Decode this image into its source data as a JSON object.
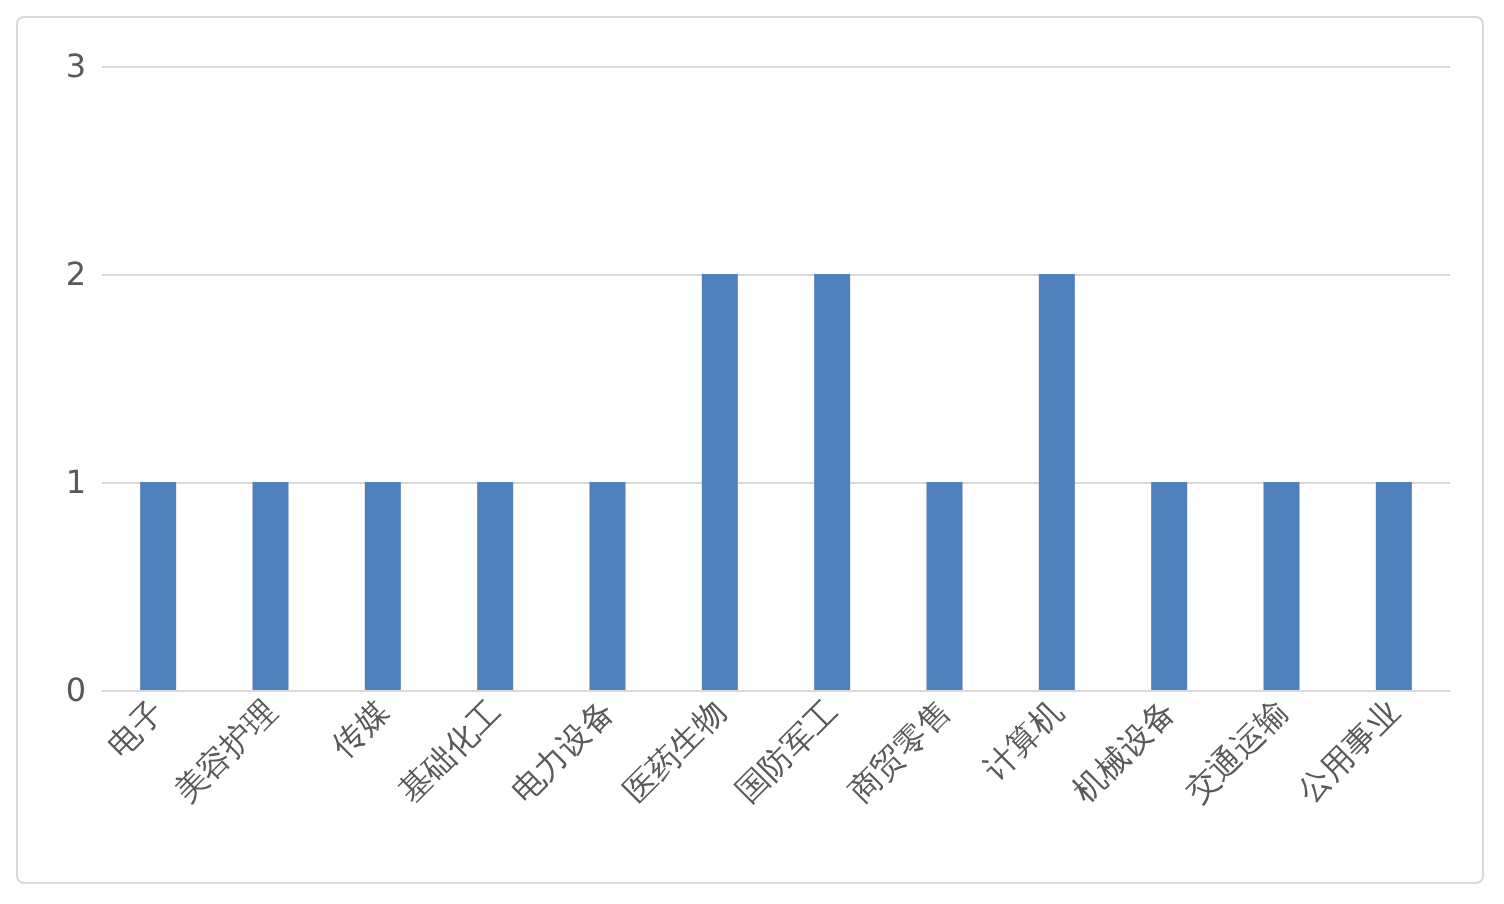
{
  "chart_data": {
    "type": "bar",
    "categories": [
      "电子",
      "美容护理",
      "传媒",
      "基础化工",
      "电力设备",
      "医药生物",
      "国防军工",
      "商贸零售",
      "计算机",
      "机械设备",
      "交通运输",
      "公用事业"
    ],
    "values": [
      1,
      1,
      1,
      1,
      1,
      2,
      2,
      1,
      2,
      1,
      1,
      1
    ],
    "color": "#4f81bd",
    "ylim": [
      0,
      3
    ],
    "yticks": [
      0,
      1,
      2,
      3
    ],
    "grid": "y"
  }
}
